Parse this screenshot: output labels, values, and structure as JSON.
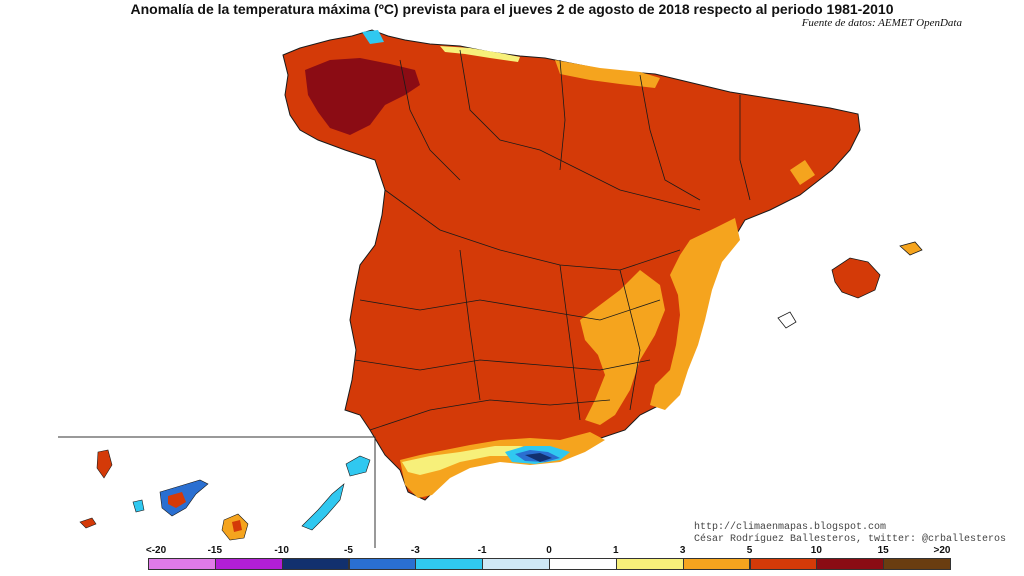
{
  "title": "Anomalía de la temperatura máxima (ºC) prevista para el jueves 2 de agosto de 2018 respecto al periodo 1981-2010",
  "source": "Fuente de datos: AEMET OpenData",
  "credits": {
    "blog": "http://climaenmapas.blogspot.com",
    "author": "César Rodríguez Ballesteros, twitter: @crballesteros"
  },
  "legend": {
    "labels": [
      "<-20",
      "-15",
      "-10",
      "-5",
      "-3",
      "-1",
      "0",
      "1",
      "3",
      "5",
      "10",
      "15",
      ">20"
    ],
    "colors": [
      "#e07ae8",
      "#b21fd6",
      "#12306e",
      "#2a6fd1",
      "#30c8f0",
      "#cfe8f6",
      "#ffffff",
      "#f7f07a",
      "#f5a41e",
      "#d43a08",
      "#8b0c14",
      "#6a3d10"
    ]
  },
  "colors": {
    "dominant": "#d43a08",
    "warm": "#f5a41e",
    "mild": "#f7f07a",
    "extreme": "#8b0c14",
    "cool": "#30c8f0",
    "cold": "#2a6fd1",
    "boundary": "#1a1a1a"
  }
}
